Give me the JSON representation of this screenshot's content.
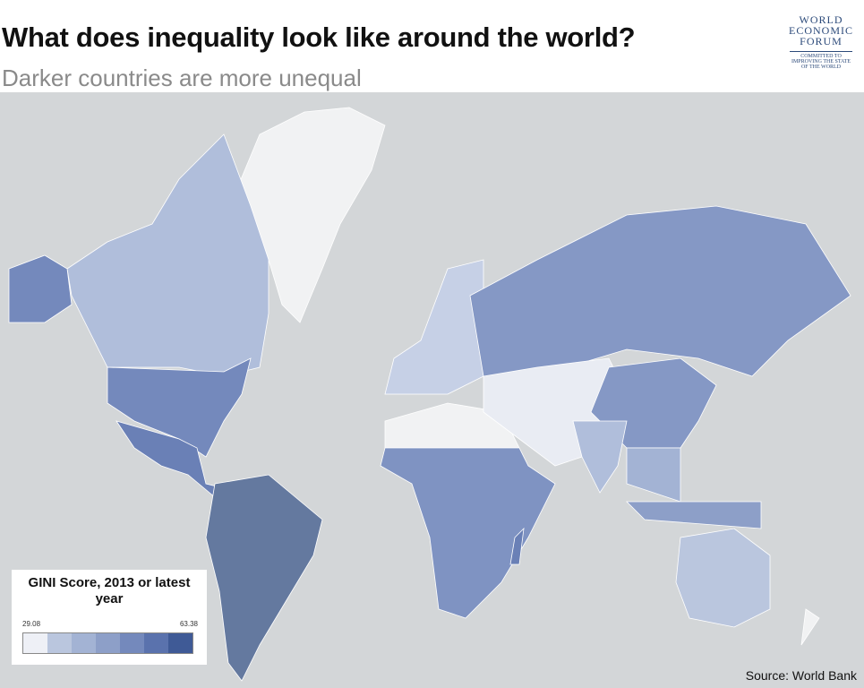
{
  "header": {
    "title": "What does inequality look like around the world?",
    "subtitle": "Darker countries are more unequal"
  },
  "logo": {
    "name_lines": [
      "WORLD",
      "ECONOMIC",
      "FORUM"
    ],
    "tagline_lines": [
      "COMMITTED TO",
      "IMPROVING THE STATE",
      "OF THE WORLD"
    ]
  },
  "legend": {
    "title": "GINI Score, 2013 or latest year",
    "min": 29.08,
    "max": 63.38,
    "colors": [
      "#eef0f6",
      "#bac6de",
      "#a3b3d4",
      "#8d9fc8",
      "#7489bc",
      "#5a72ad",
      "#3f5a96"
    ]
  },
  "source": "Source: World Bank"
}
